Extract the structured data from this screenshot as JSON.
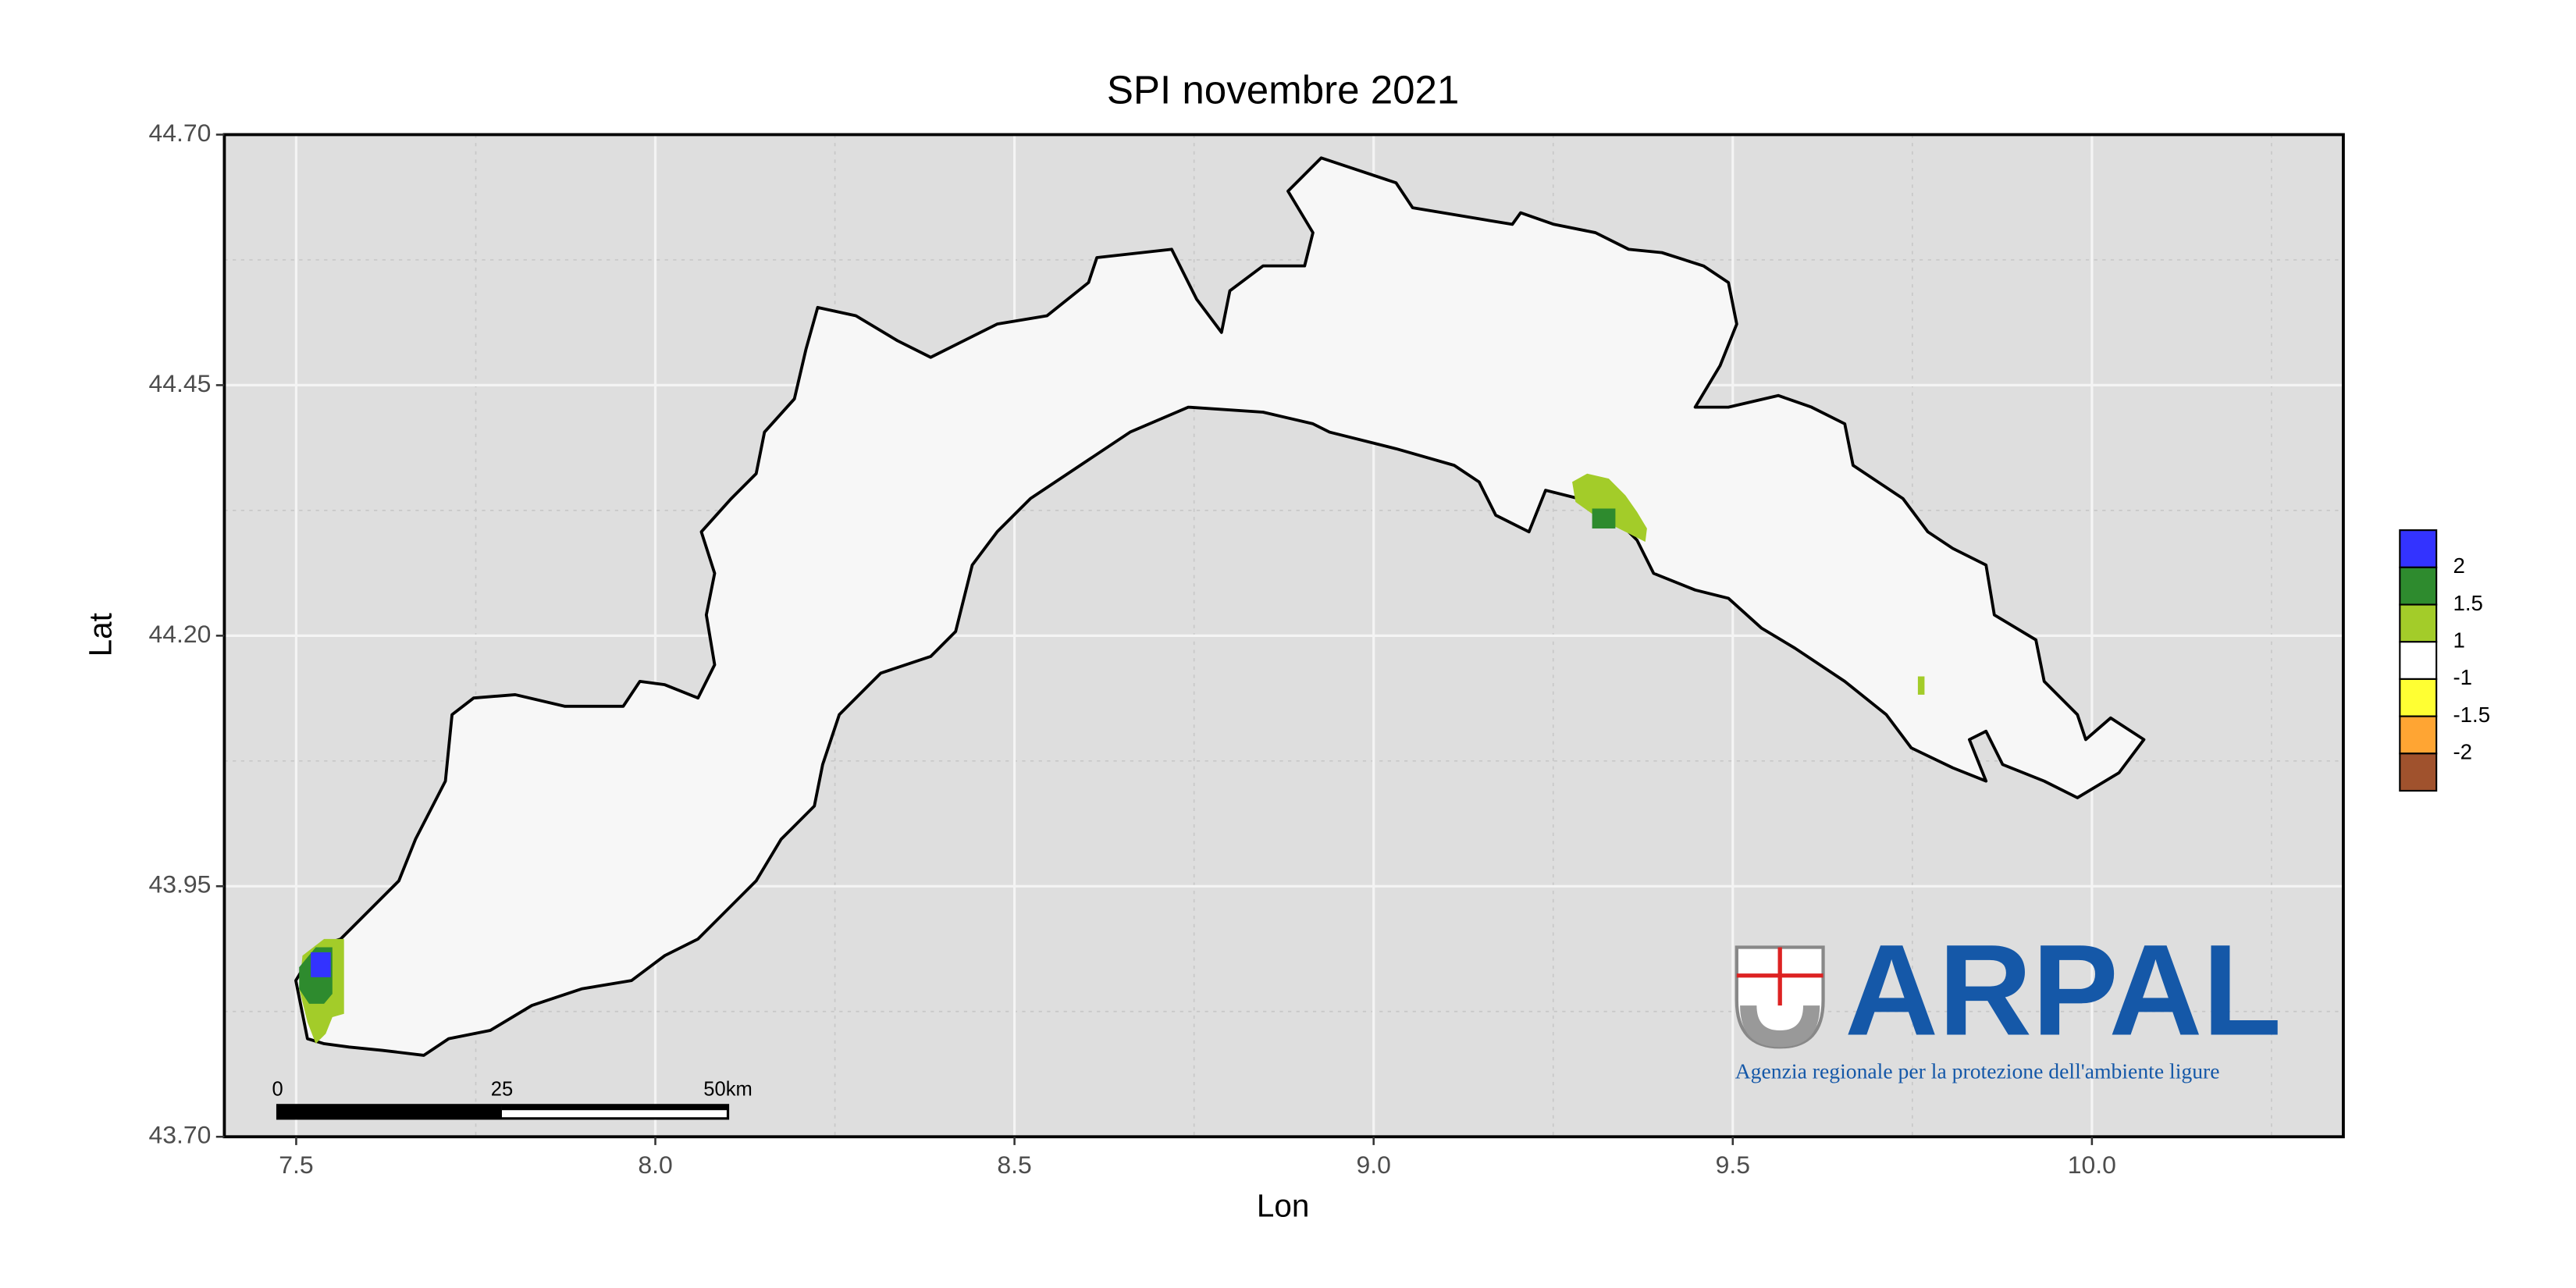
{
  "chart_data": {
    "type": "map",
    "title": "SPI novembre 2021",
    "x_label": "Lon",
    "y_label": "Lat",
    "xlim": [
      7.4,
      10.35
    ],
    "ylim": [
      43.7,
      44.7
    ],
    "xticks": [
      7.5,
      {
        "value": 8,
        "label": "8.0"
      },
      8.5,
      {
        "value": 9,
        "label": "9.0"
      },
      9.5,
      {
        "value": 10,
        "label": "10.0"
      }
    ],
    "yticks": [
      {
        "value": 43.7,
        "label": "43.70"
      },
      43.95,
      {
        "value": 44.2,
        "label": "44.20"
      },
      44.45,
      {
        "value": 44.7,
        "label": "44.70"
      }
    ],
    "grid": true,
    "legend": {
      "colors": [
        "#3333ff",
        "#2e8b2e",
        "#a3cc29",
        "#ffffff",
        "#ffff33",
        "#ffa533",
        "#a0522d"
      ],
      "labels": [
        "2",
        "1.5",
        "1",
        "-1",
        "-1.5",
        "-2"
      ]
    },
    "scale_bar": [
      "0",
      "25",
      "50km"
    ],
    "logo": {
      "name": "ARPAL",
      "subtitle": "Agenzia regionale per la protezione dell'ambiente ligure"
    }
  }
}
